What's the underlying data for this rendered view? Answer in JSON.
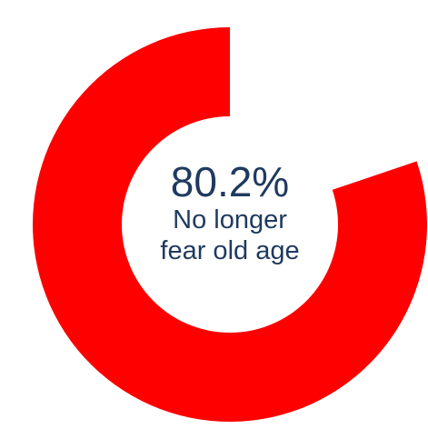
{
  "chart_data": {
    "type": "pie",
    "style": "donut",
    "slices": [
      {
        "label": "No longer fear old age",
        "value": 80.2,
        "color": "#ff0000"
      },
      {
        "label": "",
        "value": 19.8,
        "color": "#ffffff"
      }
    ],
    "center_value": "80.2%",
    "center_caption": [
      "No longer",
      "fear old age"
    ]
  },
  "colors": {
    "text": "#1f3a5f",
    "accent": "#ff0000"
  }
}
